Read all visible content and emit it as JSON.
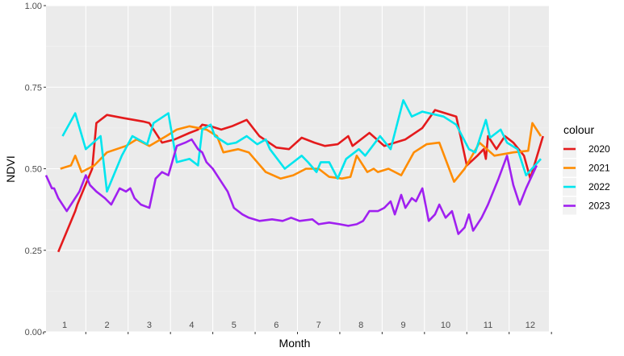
{
  "chart_data": {
    "type": "line",
    "xlabel": "Month",
    "ylabel": "NDVI",
    "ylim": [
      0,
      1
    ],
    "xlim": [
      0.56,
      12.44
    ],
    "yticks": [
      "0.00",
      "0.25",
      "0.50",
      "0.75",
      "1.00"
    ],
    "ytick_values": [
      0,
      0.25,
      0.5,
      0.75,
      1
    ],
    "xtick_labels": [
      "1",
      "2",
      "3",
      "4",
      "5",
      "6",
      "7",
      "8",
      "9",
      "10",
      "11",
      "12"
    ],
    "grid": true,
    "legend_title": "colour",
    "legend_position": "right",
    "series": [
      {
        "name": "2020",
        "color": "#e41a1c",
        "x": [
          0.85,
          1.25,
          1.3,
          1.65,
          1.75,
          2.0,
          2.4,
          2.85,
          3.0,
          3.3,
          3.6,
          3.95,
          4.15,
          4.25,
          4.45,
          4.7,
          4.95,
          5.3,
          5.6,
          6.0,
          6.3,
          6.6,
          6.9,
          7.15,
          7.45,
          7.7,
          7.8,
          8.2,
          8.55,
          8.8,
          9.05,
          9.45,
          9.75,
          10.25,
          10.5,
          10.75,
          10.9,
          10.95,
          11.0,
          11.2,
          11.4,
          11.6,
          11.85,
          12.0,
          12.3
        ],
        "y": [
          0.245,
          0.37,
          0.39,
          0.5,
          0.64,
          0.665,
          0.655,
          0.645,
          0.64,
          0.58,
          0.59,
          0.61,
          0.62,
          0.635,
          0.63,
          0.62,
          0.63,
          0.65,
          0.6,
          0.565,
          0.56,
          0.595,
          0.58,
          0.57,
          0.575,
          0.6,
          0.57,
          0.61,
          0.57,
          0.58,
          0.59,
          0.625,
          0.68,
          0.66,
          0.51,
          0.54,
          0.56,
          0.53,
          0.6,
          0.56,
          0.6,
          0.58,
          0.54,
          0.47,
          0.6
        ]
      },
      {
        "name": "2021",
        "color": "#ff8c00",
        "x": [
          0.9,
          1.15,
          1.25,
          1.4,
          1.7,
          2.0,
          2.45,
          2.7,
          3.0,
          3.4,
          3.65,
          3.95,
          4.35,
          4.6,
          4.75,
          5.1,
          5.35,
          5.75,
          6.1,
          6.4,
          6.7,
          7.0,
          7.25,
          7.55,
          7.75,
          7.9,
          8.0,
          8.15,
          8.3,
          8.4,
          8.65,
          8.95,
          9.25,
          9.55,
          9.85,
          10.2,
          10.45,
          10.8,
          11.15,
          11.6,
          11.95,
          12.05,
          12.25
        ],
        "y": [
          0.5,
          0.51,
          0.54,
          0.49,
          0.51,
          0.55,
          0.57,
          0.59,
          0.57,
          0.6,
          0.62,
          0.63,
          0.62,
          0.6,
          0.55,
          0.56,
          0.55,
          0.49,
          0.47,
          0.48,
          0.5,
          0.5,
          0.475,
          0.47,
          0.475,
          0.54,
          0.52,
          0.49,
          0.5,
          0.49,
          0.5,
          0.48,
          0.55,
          0.575,
          0.58,
          0.46,
          0.5,
          0.58,
          0.54,
          0.55,
          0.555,
          0.64,
          0.6
        ]
      },
      {
        "name": "2022",
        "color": "#00e5ee",
        "x": [
          0.95,
          1.25,
          1.5,
          1.85,
          2.0,
          2.35,
          2.6,
          2.95,
          3.1,
          3.45,
          3.65,
          3.95,
          4.15,
          4.25,
          4.45,
          4.55,
          4.85,
          5.05,
          5.3,
          5.55,
          5.75,
          5.85,
          6.2,
          6.4,
          6.6,
          6.75,
          6.95,
          7.05,
          7.25,
          7.45,
          7.65,
          7.95,
          8.1,
          8.45,
          8.7,
          9.0,
          9.2,
          9.45,
          9.95,
          10.25,
          10.55,
          10.7,
          10.95,
          11.05,
          11.3,
          11.45,
          11.7,
          11.9,
          12.25
        ],
        "y": [
          0.6,
          0.67,
          0.56,
          0.6,
          0.43,
          0.54,
          0.6,
          0.575,
          0.64,
          0.67,
          0.52,
          0.53,
          0.51,
          0.62,
          0.635,
          0.6,
          0.575,
          0.58,
          0.6,
          0.575,
          0.59,
          0.56,
          0.5,
          0.52,
          0.54,
          0.52,
          0.49,
          0.52,
          0.52,
          0.47,
          0.53,
          0.56,
          0.54,
          0.6,
          0.56,
          0.71,
          0.66,
          0.675,
          0.66,
          0.635,
          0.56,
          0.55,
          0.65,
          0.595,
          0.62,
          0.58,
          0.56,
          0.48,
          0.53
        ]
      },
      {
        "name": "2023",
        "color": "#a020f0",
        "x": [
          0.56,
          0.7,
          0.75,
          0.85,
          1.05,
          1.35,
          1.5,
          1.6,
          1.75,
          1.95,
          2.1,
          2.3,
          2.45,
          2.55,
          2.65,
          2.8,
          3.0,
          3.15,
          3.3,
          3.45,
          3.65,
          3.85,
          4.0,
          4.15,
          4.25,
          4.35,
          4.5,
          4.65,
          4.85,
          5.0,
          5.2,
          5.35,
          5.6,
          5.9,
          6.15,
          6.35,
          6.55,
          6.85,
          7.0,
          7.25,
          7.5,
          7.7,
          7.9,
          8.05,
          8.2,
          8.4,
          8.55,
          8.7,
          8.8,
          8.95,
          9.05,
          9.2,
          9.3,
          9.45,
          9.6,
          9.75,
          9.85,
          10.0,
          10.15,
          10.3,
          10.45,
          10.55,
          10.65,
          10.85,
          11.0,
          11.25,
          11.45,
          11.6,
          11.75,
          11.9,
          12.15
        ],
        "y": [
          0.48,
          0.44,
          0.44,
          0.41,
          0.37,
          0.43,
          0.48,
          0.45,
          0.43,
          0.41,
          0.39,
          0.44,
          0.43,
          0.44,
          0.41,
          0.39,
          0.38,
          0.47,
          0.49,
          0.48,
          0.57,
          0.58,
          0.59,
          0.56,
          0.55,
          0.52,
          0.5,
          0.47,
          0.43,
          0.38,
          0.36,
          0.35,
          0.34,
          0.345,
          0.34,
          0.35,
          0.34,
          0.345,
          0.33,
          0.335,
          0.33,
          0.325,
          0.33,
          0.34,
          0.37,
          0.37,
          0.38,
          0.4,
          0.36,
          0.42,
          0.38,
          0.41,
          0.4,
          0.44,
          0.34,
          0.36,
          0.39,
          0.35,
          0.37,
          0.3,
          0.32,
          0.36,
          0.31,
          0.35,
          0.39,
          0.47,
          0.54,
          0.45,
          0.39,
          0.44,
          0.51
        ]
      }
    ]
  }
}
